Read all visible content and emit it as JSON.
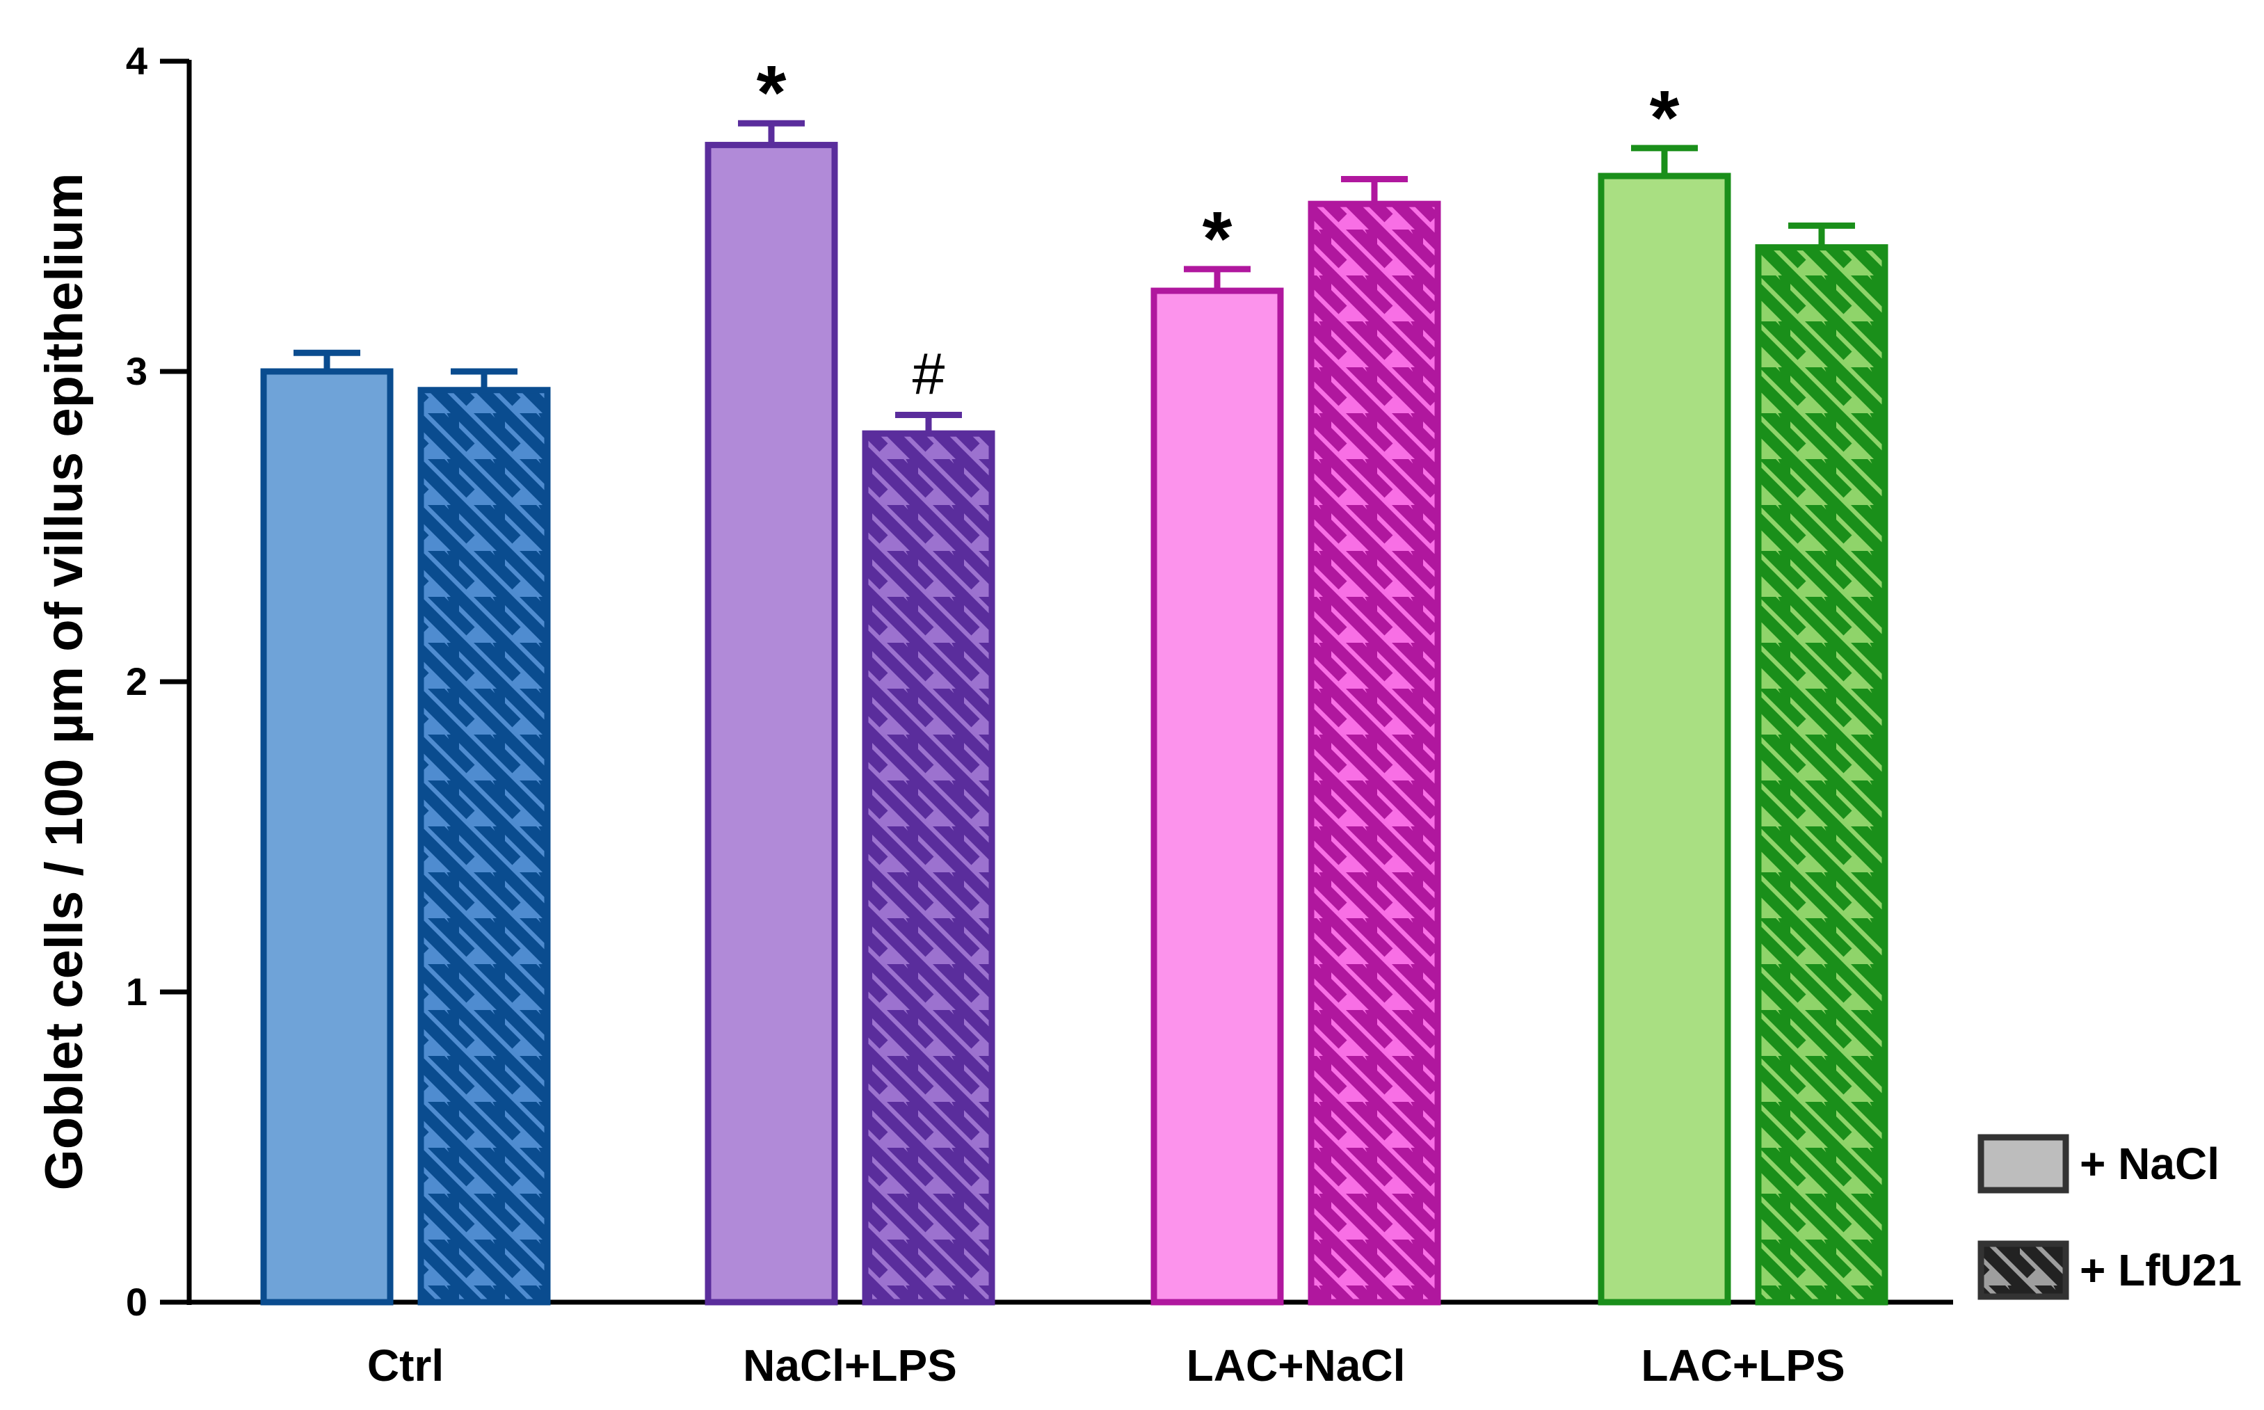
{
  "chart_data": {
    "type": "bar",
    "title": "",
    "xlabel": "",
    "ylabel": "Goblet cells / 100 µm of villus epithelium",
    "ylim": [
      0,
      4
    ],
    "yticks": [
      "0",
      "1",
      "2",
      "3",
      "4"
    ],
    "grid": false,
    "categories": [
      "Ctrl",
      "NaCl+LPS",
      "LAC+NaCl",
      "LAC+LPS"
    ],
    "series": [
      {
        "name": "+ NaCl",
        "pattern": "solid",
        "values": [
          3.0,
          3.73,
          3.26,
          3.63
        ],
        "errors": [
          0.06,
          0.07,
          0.07,
          0.09
        ],
        "annotations": [
          "",
          "*",
          "*",
          "*"
        ]
      },
      {
        "name": "+ LfU21",
        "pattern": "hatched",
        "values": [
          2.94,
          2.8,
          3.54,
          3.4
        ],
        "errors": [
          0.06,
          0.06,
          0.08,
          0.07
        ],
        "annotations": [
          "",
          "#",
          "",
          ""
        ]
      }
    ],
    "group_colors": [
      {
        "fill": "#6fa3d8",
        "hatch_fill": "#4f8cd0",
        "stroke": "#0a4c8f"
      },
      {
        "fill": "#b18ad8",
        "hatch_fill": "#9c72cf",
        "stroke": "#5a2d9c"
      },
      {
        "fill": "#fc93ec",
        "hatch_fill": "#f86fe5",
        "stroke": "#b0179e"
      },
      {
        "fill": "#a9df82",
        "hatch_fill": "#8fd46a",
        "stroke": "#1a8f1a"
      }
    ],
    "legend": {
      "placement": "bottom-right",
      "items": [
        {
          "label": "+ NaCl",
          "pattern": "solid",
          "fill": "#bdbdbd",
          "stroke": "#333333"
        },
        {
          "label": "+ LfU21",
          "pattern": "hatched",
          "fill": "#9e9e9e",
          "stroke": "#333333"
        }
      ]
    }
  }
}
